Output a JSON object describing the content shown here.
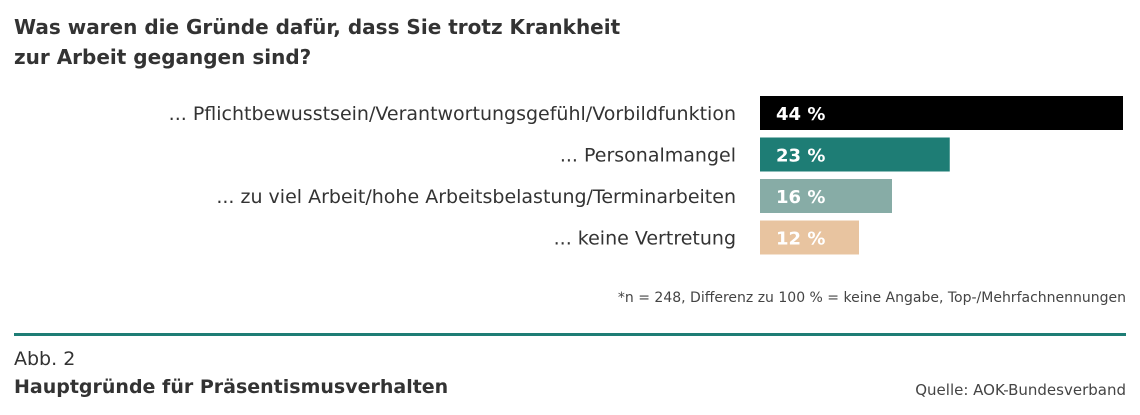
{
  "chart_data": {
    "type": "bar",
    "orientation": "horizontal",
    "title_lines": [
      "Was waren die Gründe dafür, dass Sie trotz Krankheit",
      "zur Arbeit gegangen sind?"
    ],
    "categories": [
      "... Pflichtbewusstsein/Verantwortungsgefühl/Vorbildfunktion",
      "... Personalmangel",
      "... zu viel Arbeit/hohe Arbeitsbelastung/Terminarbeiten",
      "... keine Vertretung"
    ],
    "values": [
      44,
      23,
      16,
      12
    ],
    "value_labels": [
      "44 %",
      "23 %",
      "16 %",
      "12 %"
    ],
    "colors": [
      "#000000",
      "#1e7d75",
      "#87aca6",
      "#e8c4a0"
    ],
    "xlim": [
      0,
      44
    ],
    "footnote": "*n = 248, Differenz zu 100 % = keine Angabe, Top-/Mehrfachnennungen"
  },
  "caption": {
    "figure_number": "Abb. 2",
    "figure_title": "Hauptgründe für Präsentismusverhalten",
    "source": "Quelle: AOK-Bundesverband"
  }
}
